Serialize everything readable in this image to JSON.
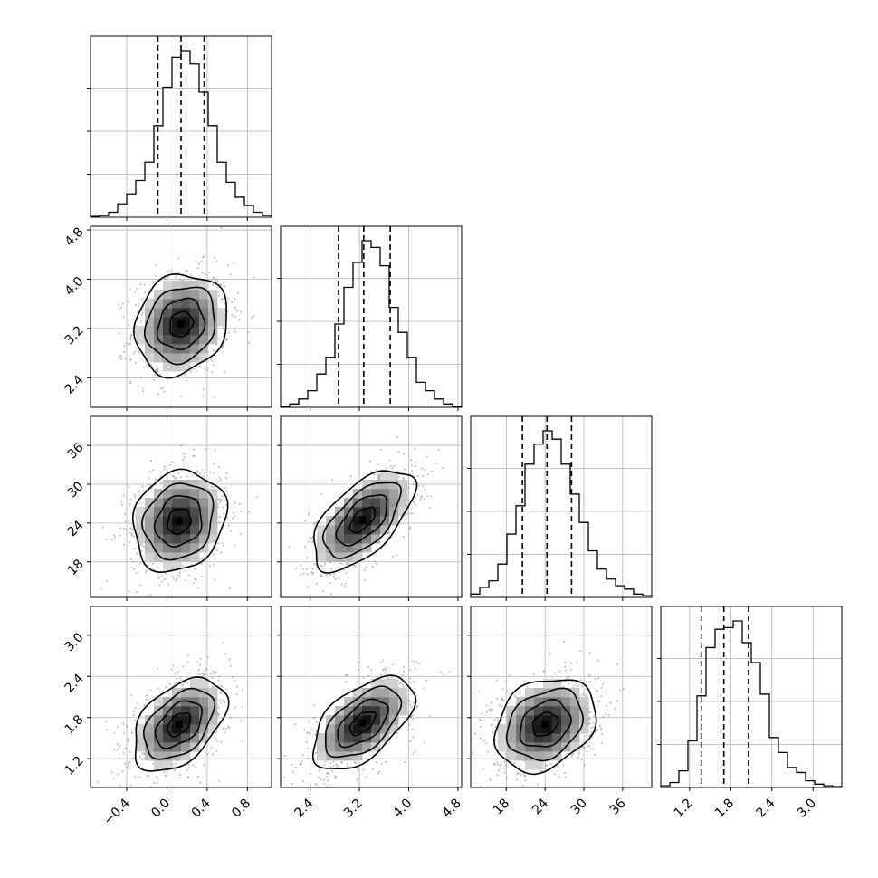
{
  "chart_data": {
    "type": "corner",
    "grid": true,
    "xlabel": "",
    "ylabel": "",
    "title": "",
    "parameters": [
      {
        "range": [
          -0.76,
          1.04
        ],
        "ticks": [
          -0.4,
          0.0,
          0.4,
          0.8
        ],
        "tick_labels": [
          "−0.4",
          "0.0",
          "0.4",
          "0.8"
        ],
        "quantiles": [
          -0.09,
          0.14,
          0.37
        ],
        "hist_counts": [
          0.005,
          0.01,
          0.03,
          0.08,
          0.14,
          0.22,
          0.33,
          0.55,
          0.78,
          0.96,
          1.0,
          0.92,
          0.75,
          0.55,
          0.33,
          0.21,
          0.12,
          0.07,
          0.03,
          0.01
        ]
      },
      {
        "range": [
          1.92,
          4.86
        ],
        "ticks": [
          2.4,
          3.2,
          4.0,
          4.8
        ],
        "tick_labels": [
          "2.4",
          "3.2",
          "4.0",
          "4.8"
        ],
        "quantiles": [
          2.86,
          3.27,
          3.7
        ],
        "hist_counts": [
          0.005,
          0.02,
          0.05,
          0.1,
          0.2,
          0.3,
          0.5,
          0.72,
          0.87,
          1.0,
          0.96,
          0.85,
          0.6,
          0.45,
          0.3,
          0.15,
          0.1,
          0.05,
          0.02,
          0.005
        ]
      },
      {
        "range": [
          12.5,
          40.5
        ],
        "ticks": [
          18,
          24,
          30,
          36
        ],
        "tick_labels": [
          "18",
          "24",
          "30",
          "36"
        ],
        "quantiles": [
          20.5,
          24.3,
          28.1
        ],
        "hist_counts": [
          0.02,
          0.06,
          0.1,
          0.2,
          0.38,
          0.55,
          0.8,
          0.92,
          1.0,
          0.95,
          0.8,
          0.62,
          0.45,
          0.28,
          0.17,
          0.11,
          0.07,
          0.05,
          0.02,
          0.01
        ]
      },
      {
        "range": [
          0.78,
          3.42
        ],
        "ticks": [
          1.2,
          1.8,
          2.4,
          3.0
        ],
        "tick_labels": [
          "1.2",
          "1.8",
          "2.4",
          "3.0"
        ],
        "quantiles": [
          1.37,
          1.7,
          2.06
        ],
        "hist_counts": [
          0.01,
          0.03,
          0.1,
          0.28,
          0.55,
          0.84,
          0.95,
          0.96,
          1.0,
          0.87,
          0.75,
          0.56,
          0.3,
          0.21,
          0.12,
          0.09,
          0.04,
          0.02,
          0.01,
          0.005
        ]
      }
    ],
    "joint": [
      {
        "row": 1,
        "col": 0,
        "center": [
          0.14,
          3.27
        ],
        "sigma": [
          0.23,
          0.41
        ],
        "corr": 0.15
      },
      {
        "row": 2,
        "col": 0,
        "center": [
          0.12,
          24.3
        ],
        "sigma": [
          0.23,
          3.9
        ],
        "corr": 0.15
      },
      {
        "row": 2,
        "col": 1,
        "center": [
          3.25,
          24.5
        ],
        "sigma": [
          0.41,
          3.9
        ],
        "corr": 0.6
      },
      {
        "row": 3,
        "col": 0,
        "center": [
          0.12,
          1.7
        ],
        "sigma": [
          0.23,
          0.34
        ],
        "corr": 0.45
      },
      {
        "row": 3,
        "col": 1,
        "center": [
          3.25,
          1.72
        ],
        "sigma": [
          0.41,
          0.34
        ],
        "corr": 0.55
      },
      {
        "row": 3,
        "col": 2,
        "center": [
          24.0,
          1.7
        ],
        "sigma": [
          3.9,
          0.34
        ],
        "corr": 0.25
      }
    ]
  }
}
